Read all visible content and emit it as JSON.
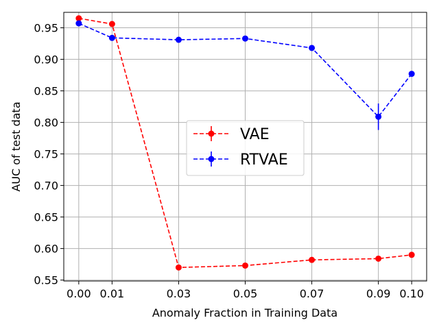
{
  "chart_data": {
    "type": "line",
    "xlabel": "Anomaly Fraction in Training Data",
    "ylabel": "AUC of test data",
    "x": [
      0.0,
      0.01,
      0.03,
      0.05,
      0.07,
      0.09,
      0.1
    ],
    "x_tick_labels": [
      "0.00",
      "0.01",
      "0.03",
      "0.05",
      "0.07",
      "0.09",
      "0.10"
    ],
    "y_ticks": [
      0.55,
      0.6,
      0.65,
      0.7,
      0.75,
      0.8,
      0.85,
      0.9,
      0.95
    ],
    "y_tick_labels": [
      "0.55",
      "0.60",
      "0.65",
      "0.70",
      "0.75",
      "0.80",
      "0.85",
      "0.90",
      "0.95"
    ],
    "xlim": [
      -0.0045,
      0.1045
    ],
    "ylim": [
      0.5485,
      0.9745
    ],
    "grid": true,
    "legend_position": "center-right",
    "series": [
      {
        "name": "VAE",
        "color": "#ff0000",
        "linestyle": "dashed",
        "marker": "circle",
        "values": [
          0.965,
          0.956,
          0.57,
          0.573,
          0.582,
          0.584,
          0.59
        ],
        "errors": [
          0.003,
          0.003,
          0.002,
          0.002,
          0.002,
          0.002,
          0.002
        ]
      },
      {
        "name": "RTVAE",
        "color": "#0000ff",
        "linestyle": "dashed",
        "marker": "circle",
        "values": [
          0.957,
          0.934,
          0.931,
          0.933,
          0.918,
          0.809,
          0.877
        ],
        "errors": [
          0.003,
          0.003,
          0.002,
          0.002,
          0.002,
          0.021,
          0.002
        ]
      }
    ]
  }
}
